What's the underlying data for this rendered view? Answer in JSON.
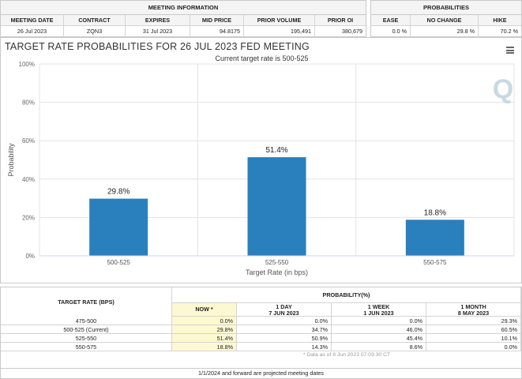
{
  "meeting_info": {
    "title": "MEETING INFORMATION",
    "headers": [
      "MEETING DATE",
      "CONTRACT",
      "EXPIRES",
      "MID PRICE",
      "PRIOR VOLUME",
      "PRIOR OI"
    ],
    "values": [
      "26 Jul 2023",
      "ZQN3",
      "31 Jul 2023",
      "94.8175",
      "195,491",
      "380,679"
    ]
  },
  "probabilities": {
    "title": "PROBABILITIES",
    "headers": [
      "EASE",
      "NO CHANGE",
      "HIKE"
    ],
    "values": [
      "0.0 %",
      "29.8 %",
      "70.2 %"
    ]
  },
  "chart": {
    "title": "TARGET RATE PROBABILITIES FOR 26 JUL 2023 FED MEETING",
    "subtitle": "Current target rate is 500-525",
    "watermark": "Q"
  },
  "chart_data": {
    "type": "bar",
    "title": "TARGET RATE PROBABILITIES FOR 26 JUL 2023 FED MEETING",
    "subtitle": "Current target rate is 500-525",
    "xlabel": "Target Rate (in bps)",
    "ylabel": "Probability",
    "categories": [
      "500-525",
      "525-550",
      "550-575"
    ],
    "values": [
      29.8,
      51.4,
      18.8
    ],
    "data_labels": [
      "29.8%",
      "51.4%",
      "18.8%"
    ],
    "ylim": [
      0,
      100
    ],
    "yticks": [
      0,
      20,
      40,
      60,
      80,
      100
    ],
    "ytick_labels": [
      "0%",
      "20%",
      "40%",
      "60%",
      "80%",
      "100%"
    ],
    "grid": true,
    "bar_color": "#2a7fbd"
  },
  "prob_table": {
    "target_header": "TARGET RATE (BPS)",
    "prob_header": "PROBABILITY(%)",
    "columns": [
      {
        "line1": "NOW *",
        "line2": ""
      },
      {
        "line1": "1 DAY",
        "line2": "7 JUN 2023"
      },
      {
        "line1": "1 WEEK",
        "line2": "1 JUN 2023"
      },
      {
        "line1": "1 MONTH",
        "line2": "8 MAY 2023"
      }
    ],
    "rows": [
      {
        "rate": "475-500",
        "vals": [
          "0.0%",
          "0.0%",
          "0.0%",
          "29.3%"
        ]
      },
      {
        "rate": "500-525 (Current)",
        "vals": [
          "29.8%",
          "34.7%",
          "46.0%",
          "60.5%"
        ]
      },
      {
        "rate": "525-550",
        "vals": [
          "51.4%",
          "50.9%",
          "45.4%",
          "10.1%"
        ]
      },
      {
        "rate": "550-575",
        "vals": [
          "18.8%",
          "14.3%",
          "8.6%",
          "0.0%"
        ]
      }
    ],
    "data_note": "* Data as of 8 Jun 2023 07:03:30 CT",
    "footer": "1/1/2024 and forward are projected meeting dates"
  }
}
